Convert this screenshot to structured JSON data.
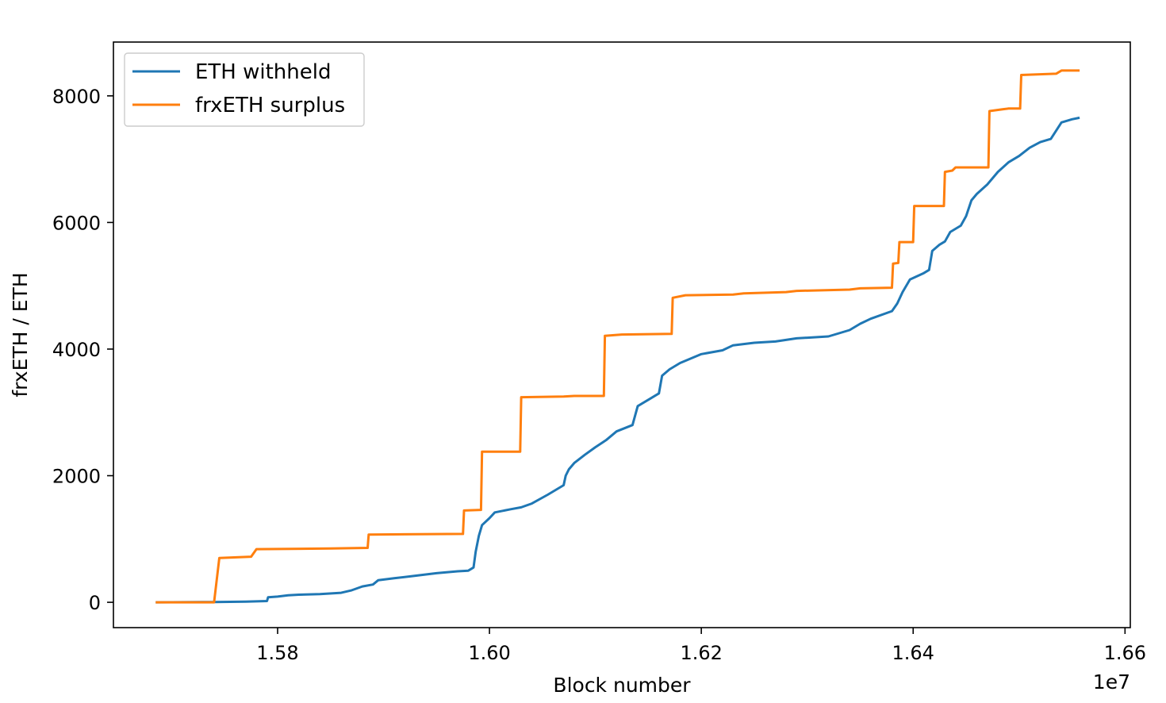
{
  "chart_data": {
    "type": "line",
    "title": "",
    "xlabel": "Block number",
    "ylabel": "frxETH / ETH",
    "x_offset_label": "1e7",
    "xlim": [
      1.5645,
      1.6605
    ],
    "ylim": [
      -400,
      8850
    ],
    "x_ticks": [
      1.58,
      1.6,
      1.62,
      1.64,
      1.66
    ],
    "x_tick_labels": [
      "1.58",
      "1.60",
      "1.62",
      "1.64",
      "1.66"
    ],
    "y_ticks": [
      0,
      2000,
      4000,
      6000,
      8000
    ],
    "y_tick_labels": [
      "0",
      "2000",
      "4000",
      "6000",
      "8000"
    ],
    "grid": false,
    "legend_position": "top-left",
    "series": [
      {
        "name": "ETH withheld",
        "color": "#1f77b4",
        "points": [
          [
            1.5686,
            0
          ],
          [
            1.574,
            5
          ],
          [
            1.577,
            10
          ],
          [
            1.579,
            20
          ],
          [
            1.5791,
            80
          ],
          [
            1.58,
            90
          ],
          [
            1.581,
            110
          ],
          [
            1.582,
            120
          ],
          [
            1.584,
            130
          ],
          [
            1.586,
            150
          ],
          [
            1.587,
            190
          ],
          [
            1.588,
            250
          ],
          [
            1.589,
            280
          ],
          [
            1.5895,
            350
          ],
          [
            1.591,
            380
          ],
          [
            1.593,
            420
          ],
          [
            1.595,
            460
          ],
          [
            1.597,
            490
          ],
          [
            1.598,
            500
          ],
          [
            1.5985,
            550
          ],
          [
            1.5987,
            800
          ],
          [
            1.599,
            1050
          ],
          [
            1.5993,
            1220
          ],
          [
            1.6,
            1330
          ],
          [
            1.6005,
            1420
          ],
          [
            1.602,
            1470
          ],
          [
            1.603,
            1500
          ],
          [
            1.604,
            1560
          ],
          [
            1.6055,
            1700
          ],
          [
            1.607,
            1850
          ],
          [
            1.6072,
            2000
          ],
          [
            1.6075,
            2100
          ],
          [
            1.608,
            2200
          ],
          [
            1.609,
            2330
          ],
          [
            1.61,
            2450
          ],
          [
            1.611,
            2560
          ],
          [
            1.612,
            2700
          ],
          [
            1.6135,
            2800
          ],
          [
            1.614,
            3100
          ],
          [
            1.615,
            3200
          ],
          [
            1.616,
            3300
          ],
          [
            1.6163,
            3580
          ],
          [
            1.617,
            3680
          ],
          [
            1.618,
            3780
          ],
          [
            1.619,
            3850
          ],
          [
            1.62,
            3920
          ],
          [
            1.622,
            3980
          ],
          [
            1.623,
            4060
          ],
          [
            1.625,
            4100
          ],
          [
            1.627,
            4120
          ],
          [
            1.629,
            4170
          ],
          [
            1.632,
            4200
          ],
          [
            1.633,
            4250
          ],
          [
            1.634,
            4300
          ],
          [
            1.635,
            4400
          ],
          [
            1.636,
            4480
          ],
          [
            1.638,
            4600
          ],
          [
            1.6385,
            4720
          ],
          [
            1.639,
            4900
          ],
          [
            1.6397,
            5100
          ],
          [
            1.641,
            5200
          ],
          [
            1.6415,
            5250
          ],
          [
            1.6418,
            5550
          ],
          [
            1.6425,
            5650
          ],
          [
            1.643,
            5700
          ],
          [
            1.6435,
            5850
          ],
          [
            1.6445,
            5950
          ],
          [
            1.645,
            6100
          ],
          [
            1.6455,
            6350
          ],
          [
            1.646,
            6450
          ],
          [
            1.647,
            6600
          ],
          [
            1.648,
            6800
          ],
          [
            1.649,
            6950
          ],
          [
            1.65,
            7050
          ],
          [
            1.651,
            7180
          ],
          [
            1.652,
            7270
          ],
          [
            1.653,
            7320
          ],
          [
            1.654,
            7580
          ],
          [
            1.655,
            7630
          ],
          [
            1.6556,
            7650
          ]
        ]
      },
      {
        "name": "frxETH surplus",
        "color": "#ff7f0e",
        "points": [
          [
            1.5686,
            0
          ],
          [
            1.574,
            0
          ],
          [
            1.5745,
            700
          ],
          [
            1.5775,
            720
          ],
          [
            1.578,
            840
          ],
          [
            1.585,
            850
          ],
          [
            1.5885,
            860
          ],
          [
            1.5886,
            1070
          ],
          [
            1.5975,
            1080
          ],
          [
            1.5976,
            1450
          ],
          [
            1.5992,
            1460
          ],
          [
            1.5993,
            2380
          ],
          [
            1.6029,
            2380
          ],
          [
            1.603,
            3240
          ],
          [
            1.607,
            3250
          ],
          [
            1.608,
            3260
          ],
          [
            1.6108,
            3260
          ],
          [
            1.6109,
            4210
          ],
          [
            1.6125,
            4230
          ],
          [
            1.6172,
            4240
          ],
          [
            1.6173,
            4810
          ],
          [
            1.6185,
            4850
          ],
          [
            1.623,
            4860
          ],
          [
            1.624,
            4880
          ],
          [
            1.628,
            4900
          ],
          [
            1.629,
            4920
          ],
          [
            1.634,
            4940
          ],
          [
            1.635,
            4960
          ],
          [
            1.638,
            4970
          ],
          [
            1.6381,
            5350
          ],
          [
            1.6386,
            5360
          ],
          [
            1.6387,
            5690
          ],
          [
            1.64,
            5690
          ],
          [
            1.6401,
            6260
          ],
          [
            1.6429,
            6260
          ],
          [
            1.643,
            6800
          ],
          [
            1.6437,
            6820
          ],
          [
            1.644,
            6870
          ],
          [
            1.6471,
            6870
          ],
          [
            1.6472,
            7760
          ],
          [
            1.6485,
            7790
          ],
          [
            1.649,
            7800
          ],
          [
            1.6501,
            7800
          ],
          [
            1.6502,
            8330
          ],
          [
            1.6535,
            8350
          ],
          [
            1.654,
            8400
          ],
          [
            1.6556,
            8400
          ]
        ]
      }
    ]
  }
}
